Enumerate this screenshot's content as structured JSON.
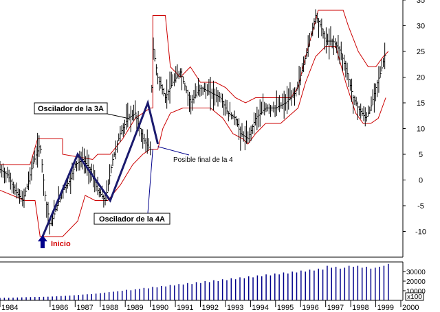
{
  "chart_data": [
    {
      "type": "line",
      "title": "",
      "ylim": [
        -15,
        35
      ],
      "xlim": [
        1984,
        2000
      ],
      "y_ticks": [
        "35",
        "30",
        "25",
        "20",
        "15",
        "10",
        "5",
        "0",
        "-5",
        "-10"
      ],
      "y_tick_values": [
        35,
        30,
        25,
        20,
        15,
        10,
        5,
        0,
        -5,
        -10
      ],
      "grid": false,
      "series": [
        {
          "id": "oscillator",
          "style": "bars",
          "color": "#000000",
          "x": [
            1984.0,
            1984.3,
            1984.6,
            1984.9,
            1985.1,
            1985.3,
            1985.6,
            1985.8,
            1986.0,
            1986.2,
            1986.5,
            1986.8,
            1987.0,
            1987.3,
            1987.6,
            1987.9,
            1988.2,
            1988.5,
            1988.8,
            1989.1,
            1989.4,
            1989.7,
            1990.0,
            1990.1,
            1990.3,
            1990.6,
            1990.9,
            1991.2,
            1991.6,
            1992.0,
            1992.4,
            1992.8,
            1993.1,
            1993.4,
            1993.6,
            1993.9,
            1994.2,
            1994.6,
            1995.0,
            1995.4,
            1995.8,
            1996.1,
            1996.4,
            1996.6,
            1996.8,
            1997.0,
            1997.3,
            1997.6,
            1997.9,
            1998.1,
            1998.3,
            1998.6,
            1998.8,
            1999.0,
            1999.2,
            1999.4
          ],
          "values": [
            2,
            1,
            -2,
            -4,
            -1,
            3,
            7,
            -3,
            -9,
            -6,
            -2,
            0,
            3,
            4,
            2,
            -2,
            -4,
            4,
            9,
            12,
            13,
            8,
            6,
            26,
            20,
            16,
            19,
            21,
            15,
            18,
            17,
            16,
            13,
            12,
            9,
            8,
            12,
            14,
            14,
            15,
            17,
            22,
            28,
            32,
            30,
            27,
            27,
            25,
            20,
            16,
            14,
            12,
            14,
            18,
            21,
            25
          ]
        },
        {
          "id": "upper-band",
          "color": "#cc0000",
          "x": [
            1984.0,
            1985.2,
            1985.2,
            1985.5,
            1986.5,
            1986.5,
            1987.7,
            1987.9,
            1988.4,
            1988.9,
            1989.4,
            1990.0,
            1990.1,
            1990.1,
            1990.6,
            1990.8,
            1991.2,
            1991.6,
            1992.0,
            1992.6,
            1993.0,
            1993.4,
            1993.8,
            1994.2,
            1994.6,
            1995.0,
            1995.6,
            1995.9,
            1996.2,
            1996.6,
            1996.7,
            1997.7,
            1997.9,
            1998.3,
            1998.7,
            1999.0,
            1999.3,
            1999.5
          ],
          "values": [
            3,
            3,
            3,
            8,
            8,
            5,
            4,
            5,
            5,
            8,
            12,
            14,
            14,
            32,
            32,
            22,
            20,
            22,
            19,
            19,
            18,
            16,
            15,
            16,
            16,
            16,
            16,
            18,
            24,
            31,
            33,
            33,
            30,
            25,
            22,
            22,
            24,
            25
          ]
        },
        {
          "id": "lower-band",
          "color": "#cc0000",
          "x": [
            1984.0,
            1985.0,
            1985.4,
            1985.6,
            1986.5,
            1987.1,
            1987.4,
            1987.8,
            1988.3,
            1988.8,
            1989.3,
            1989.7,
            1990.0,
            1990.1,
            1990.3,
            1990.5,
            1990.8,
            1991.3,
            1991.8,
            1992.4,
            1992.9,
            1993.3,
            1993.7,
            1993.9,
            1994.2,
            1994.6,
            1995.2,
            1995.9,
            1996.2,
            1996.6,
            1997.0,
            1997.4,
            1997.8,
            1998.2,
            1998.5,
            1998.8,
            1999.1,
            1999.4
          ],
          "values": [
            -2,
            -4,
            -4,
            -11,
            -11,
            -8,
            -3,
            -4,
            -4,
            -1,
            3,
            5,
            6,
            6,
            6,
            10,
            13,
            14,
            14,
            14,
            12,
            9,
            8,
            7,
            9,
            11,
            11,
            14,
            19,
            24,
            26,
            26,
            19,
            13,
            11,
            11,
            12,
            16
          ]
        },
        {
          "id": "zigzag-3A",
          "color": "#1a1a6e",
          "x": [
            1985.7,
            1987.1,
            1988.4,
            1989.9,
            1990.3
          ],
          "values": [
            -11,
            5,
            -4,
            15,
            7
          ]
        }
      ],
      "annotations": [
        {
          "id": "osc-3a",
          "text": "Oscilador de la 3A",
          "x": 1989.1,
          "y": 12
        },
        {
          "id": "osc-4a",
          "text": "Oscilador de la 4A",
          "x": 1988.5,
          "y": -4
        },
        {
          "id": "posible",
          "text": "Posible final de la 4",
          "x": 1990.5,
          "y": 7
        },
        {
          "id": "inicio",
          "text": "Inicio",
          "x": 1985.7,
          "y": -11
        }
      ]
    },
    {
      "type": "bar",
      "title": "",
      "ylim": [
        0,
        40000
      ],
      "y_ticks": [
        "30000",
        "20000",
        "10000"
      ],
      "y_tick_values": [
        30000,
        20000,
        10000
      ],
      "unit_label": "x100",
      "x_ticks": [
        "1984",
        "1986",
        "1987",
        "1988",
        "1989",
        "1990",
        "1991",
        "1992",
        "1993",
        "1994",
        "1995",
        "1996",
        "1997",
        "1998",
        "1999",
        "2000"
      ],
      "x_tick_values": [
        1984,
        1986,
        1987,
        1988,
        1989,
        1990,
        1991,
        1992,
        1993,
        1994,
        1995,
        1996,
        1997,
        1998,
        1999,
        2000
      ],
      "bar_color": "#00008b",
      "x_start": 1984.0,
      "x_end": 1999.5,
      "values": [
        2500,
        2700,
        2600,
        2800,
        3000,
        3100,
        3300,
        3400,
        3500,
        3600,
        3700,
        3800,
        4000,
        4200,
        4500,
        4700,
        5000,
        5300,
        5600,
        6000,
        6300,
        6500,
        7000,
        7500,
        8000,
        8500,
        9000,
        9500,
        10000,
        11000,
        10500,
        11500,
        12000,
        13000,
        12500,
        14000,
        13500,
        15000,
        14500,
        16000,
        15500,
        17000,
        16500,
        18000,
        17000,
        19000,
        18000,
        20000,
        19000,
        21000,
        20000,
        22000,
        21000,
        23000,
        22000,
        24000,
        23000,
        25000,
        24000,
        26000,
        25000,
        27000,
        26000,
        28000,
        27000,
        29000,
        28000,
        30000,
        29000,
        31000,
        30000,
        32000,
        31000,
        33000,
        32000,
        36000,
        34000,
        35000,
        33000,
        34000,
        36000,
        35000,
        36000,
        34000,
        35000,
        33000,
        34000,
        35000,
        36000,
        38000
      ]
    }
  ]
}
